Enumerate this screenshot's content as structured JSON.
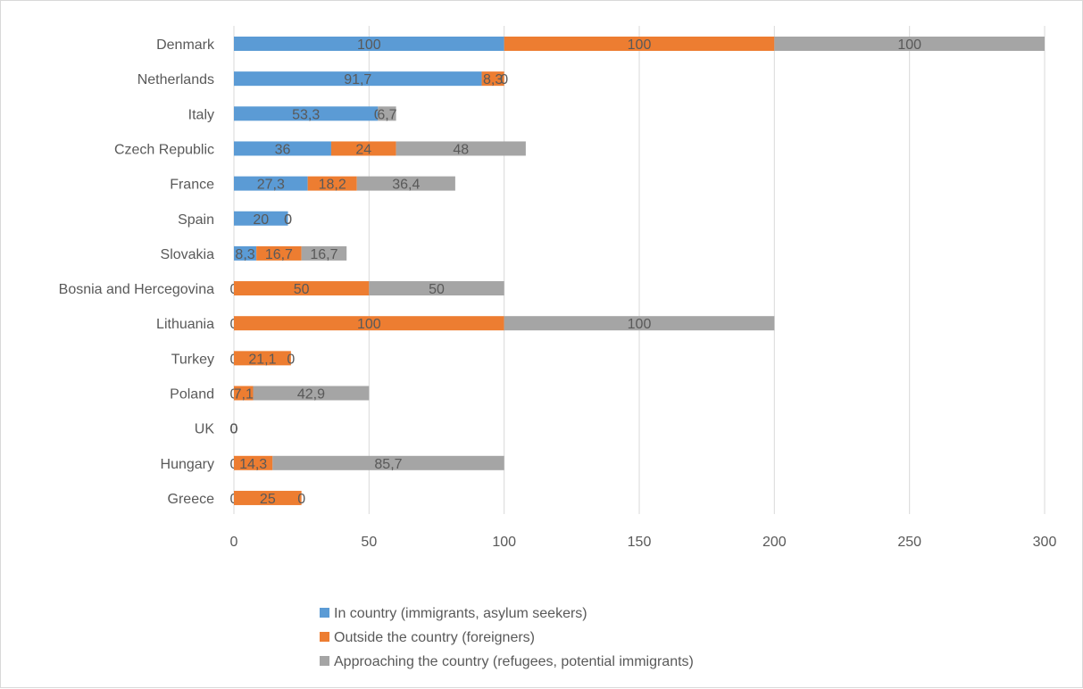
{
  "chart_data": {
    "type": "bar",
    "orientation": "horizontal",
    "stacked": true,
    "categories": [
      "Denmark",
      "Netherlands",
      "Italy",
      "Czech Republic",
      "France",
      "Spain",
      "Slovakia",
      "Bosnia and Hercegovina",
      "Lithuania",
      "Turkey",
      "Poland",
      "UK",
      "Hungary",
      "Greece"
    ],
    "series": [
      {
        "name": "In country (immigrants, asylum seekers)",
        "color": "#5b9bd5",
        "values": [
          100,
          91.7,
          53.3,
          36,
          27.3,
          20,
          8.3,
          0,
          0,
          0,
          0,
          0,
          0,
          0
        ],
        "labels": [
          "100",
          "91,7",
          "53,3",
          "36",
          "27,3",
          "20",
          "8,3",
          "0",
          "0",
          "0",
          "0",
          "0",
          "0",
          "0"
        ]
      },
      {
        "name": "Outside the country (foreigners)",
        "color": "#ed7d31",
        "values": [
          100,
          8.3,
          0,
          24,
          18.2,
          0,
          16.7,
          50,
          100,
          21.1,
          7.1,
          0,
          14.3,
          25
        ],
        "labels": [
          "100",
          "8,3",
          "0",
          "24",
          "18,2",
          "0",
          "16,7",
          "50",
          "100",
          "21,1",
          "7,1",
          "0",
          "14,3",
          "25"
        ]
      },
      {
        "name": "Approaching the country (refugees, potential immigrants)",
        "color": "#a5a5a5",
        "values": [
          100,
          0,
          6.7,
          48,
          36.4,
          0,
          16.7,
          50,
          100,
          0,
          42.9,
          0,
          85.7,
          0
        ],
        "labels": [
          "100",
          "0",
          "6,7",
          "48",
          "36,4",
          "0",
          "16,7",
          "50",
          "100",
          "0",
          "42,9",
          "0",
          "85,7",
          "0"
        ]
      }
    ],
    "xlim": [
      0,
      300
    ],
    "xticks": [
      "0",
      "50",
      "100",
      "150",
      "200",
      "250",
      "300"
    ],
    "grid": "vertical",
    "legend": "bottom"
  }
}
